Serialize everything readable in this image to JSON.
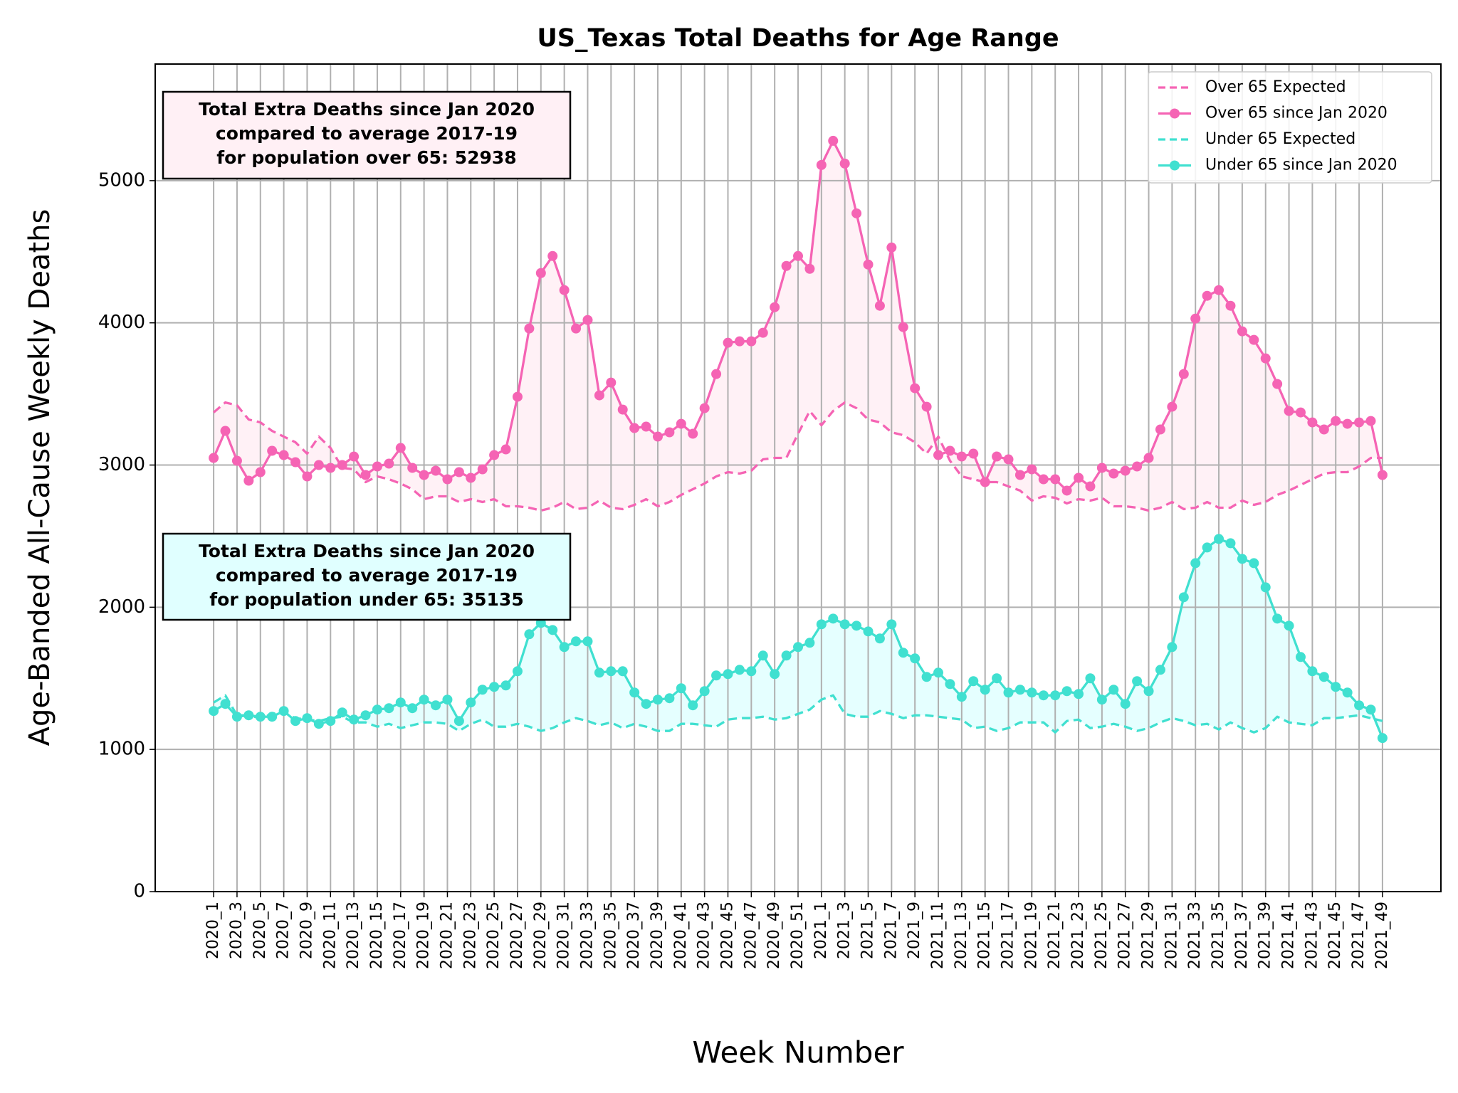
{
  "chart_data": {
    "type": "line",
    "title": "US_Texas Total Deaths for Age Range",
    "x_label": "Week Number",
    "y_label": "Age-Banded All-Cause Weekly Deaths",
    "categories": [
      "2020_1",
      null,
      "2020_3",
      null,
      "2020_5",
      null,
      "2020_7",
      null,
      "2020_9",
      null,
      "2020_11",
      null,
      "2020_13",
      null,
      "2020_15",
      null,
      "2020_17",
      null,
      "2020_19",
      null,
      "2020_21",
      null,
      "2020_23",
      null,
      "2020_25",
      null,
      "2020_27",
      null,
      "2020_29",
      null,
      "2020_31",
      null,
      "2020_33",
      null,
      "2020_35",
      null,
      "2020_37",
      null,
      "2020_39",
      null,
      "2020_41",
      null,
      "2020_43",
      null,
      "2020_45",
      null,
      "2020_47",
      null,
      "2020_49",
      null,
      "2020_51",
      null,
      "2021_1",
      null,
      "2021_3",
      null,
      "2021_5",
      null,
      "2021_7",
      null,
      "2021_9",
      null,
      "2021_11",
      null,
      "2021_13",
      null,
      "2021_15",
      null,
      "2021_17",
      null,
      "2021_19",
      null,
      "2021_21",
      null,
      "2021_23",
      null,
      "2021_25",
      null,
      "2021_27",
      null,
      "2021_29",
      null,
      "2021_31",
      null,
      "2021_33",
      null,
      "2021_35",
      null,
      "2021_37",
      null,
      "2021_39",
      null,
      "2021_41",
      null,
      "2021_43",
      null,
      "2021_45",
      null,
      "2021_47",
      null,
      "2021_49"
    ],
    "series": [
      {
        "name": "Over 65 Expected",
        "color": "#f564b4",
        "dashed": true,
        "markers": false,
        "values": [
          3370,
          3440,
          3420,
          3320,
          3300,
          3240,
          3200,
          3160,
          3080,
          3200,
          3120,
          2980,
          2970,
          2880,
          2920,
          2900,
          2870,
          2830,
          2760,
          2780,
          2780,
          2740,
          2760,
          2740,
          2760,
          2710,
          2710,
          2700,
          2680,
          2700,
          2740,
          2690,
          2700,
          2750,
          2700,
          2690,
          2720,
          2760,
          2710,
          2740,
          2790,
          2830,
          2870,
          2920,
          2950,
          2940,
          2960,
          3040,
          3050,
          3050,
          3220,
          3380,
          3280,
          3380,
          3440,
          3400,
          3320,
          3300,
          3230,
          3210,
          3160,
          3080,
          3200,
          3030,
          2920,
          2900,
          2880,
          2880,
          2850,
          2820,
          2750,
          2780,
          2770,
          2730,
          2760,
          2750,
          2770,
          2710,
          2710,
          2700,
          2680,
          2700,
          2740,
          2690,
          2700,
          2740,
          2700,
          2700,
          2750,
          2720,
          2740,
          2790,
          2820,
          2860,
          2900,
          2940,
          2950,
          2950,
          2990,
          3050,
          3050
        ]
      },
      {
        "name": "Over 65 since Jan 2020",
        "color": "#f564b4",
        "dashed": false,
        "markers": true,
        "fill": "#ffeef5",
        "values": [
          3050,
          3240,
          3030,
          2890,
          2950,
          3100,
          3070,
          3020,
          2920,
          3000,
          2980,
          3000,
          3060,
          2930,
          2990,
          3010,
          3120,
          2980,
          2930,
          2960,
          2900,
          2950,
          2910,
          2970,
          3070,
          3110,
          3480,
          3960,
          4350,
          4470,
          4230,
          3960,
          4020,
          3490,
          3580,
          3390,
          3260,
          3270,
          3200,
          3230,
          3290,
          3220,
          3400,
          3640,
          3860,
          3870,
          3870,
          3930,
          4110,
          4400,
          4470,
          4380,
          5110,
          5280,
          5120,
          4770,
          4410,
          4120,
          4530,
          3970,
          3540,
          3410,
          3070,
          3100,
          3060,
          3080,
          2880,
          3060,
          3040,
          2930,
          2970,
          2900,
          2900,
          2820,
          2910,
          2850,
          2980,
          2940,
          2960,
          2990,
          3050,
          3250,
          3410,
          3640,
          4030,
          4190,
          4230,
          4120,
          3940,
          3880,
          3750,
          3570,
          3380,
          3370,
          3300,
          3250,
          3310,
          3290,
          3300,
          3310,
          2930
        ]
      },
      {
        "name": "Under 65 Expected",
        "color": "#40e0d0",
        "dashed": true,
        "markers": false,
        "values": [
          1330,
          1380,
          1240,
          1240,
          1220,
          1250,
          1260,
          1220,
          1210,
          1200,
          1220,
          1230,
          1190,
          1190,
          1160,
          1180,
          1150,
          1170,
          1190,
          1190,
          1180,
          1130,
          1180,
          1210,
          1160,
          1160,
          1180,
          1160,
          1130,
          1150,
          1190,
          1220,
          1200,
          1170,
          1190,
          1150,
          1180,
          1160,
          1130,
          1130,
          1180,
          1180,
          1170,
          1160,
          1210,
          1220,
          1220,
          1230,
          1210,
          1220,
          1250,
          1280,
          1350,
          1380,
          1250,
          1230,
          1230,
          1270,
          1250,
          1220,
          1240,
          1240,
          1230,
          1220,
          1210,
          1150,
          1160,
          1130,
          1150,
          1190,
          1190,
          1190,
          1120,
          1200,
          1210,
          1150,
          1160,
          1180,
          1160,
          1130,
          1150,
          1190,
          1220,
          1200,
          1170,
          1180,
          1140,
          1190,
          1150,
          1120,
          1150,
          1230,
          1190,
          1180,
          1170,
          1220,
          1220,
          1230,
          1240,
          1220,
          1200
        ]
      },
      {
        "name": "Under 65 since Jan 2020",
        "color": "#40e0d0",
        "dashed": false,
        "markers": true,
        "fill": "#e0ffff",
        "values": [
          1270,
          1320,
          1230,
          1240,
          1230,
          1230,
          1270,
          1200,
          1220,
          1180,
          1200,
          1260,
          1210,
          1240,
          1280,
          1290,
          1330,
          1290,
          1350,
          1310,
          1350,
          1200,
          1330,
          1420,
          1440,
          1450,
          1550,
          1810,
          1890,
          1840,
          1720,
          1760,
          1760,
          1540,
          1550,
          1550,
          1400,
          1320,
          1350,
          1360,
          1430,
          1310,
          1410,
          1520,
          1530,
          1560,
          1550,
          1660,
          1530,
          1660,
          1720,
          1750,
          1880,
          1920,
          1880,
          1870,
          1830,
          1780,
          1880,
          1680,
          1640,
          1510,
          1540,
          1460,
          1370,
          1480,
          1420,
          1500,
          1400,
          1420,
          1400,
          1380,
          1380,
          1410,
          1390,
          1500,
          1350,
          1420,
          1320,
          1480,
          1410,
          1560,
          1720,
          2070,
          2310,
          2420,
          2480,
          2450,
          2340,
          2310,
          2140,
          1920,
          1870,
          1650,
          1550,
          1510,
          1440,
          1400,
          1310,
          1280,
          1080
        ]
      }
    ],
    "annotations": [
      {
        "lines": [
          "Total Extra Deaths since Jan 2020",
          "compared to average 2017-19",
          "for population over 65: 52938"
        ],
        "color": "#fff0f5"
      },
      {
        "lines": [
          "Total Extra Deaths since Jan 2020",
          "compared to average 2017-19",
          "for population under 65: 35135"
        ],
        "color": "#e0ffff"
      }
    ],
    "ylim": [
      0,
      5820
    ],
    "yticks": [
      0,
      1000,
      2000,
      3000,
      4000,
      5000
    ],
    "grid": true,
    "legend": "upper right"
  }
}
